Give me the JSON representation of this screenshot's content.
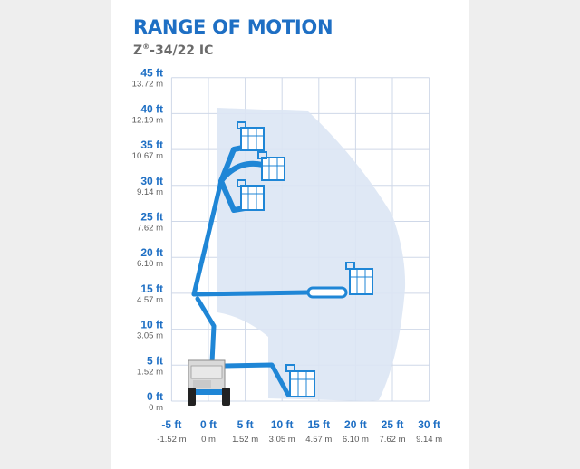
{
  "title": "RANGE OF MOTION",
  "model": {
    "prefix": "Z",
    "mark": "®",
    "rest": "-34/22 IC"
  },
  "y_axis": [
    {
      "ft": "45 ft",
      "m": "13.72 m",
      "v": 45
    },
    {
      "ft": "40 ft",
      "m": "12.19 m",
      "v": 40
    },
    {
      "ft": "35 ft",
      "m": "10.67 m",
      "v": 35
    },
    {
      "ft": "30 ft",
      "m": "9.14 m",
      "v": 30
    },
    {
      "ft": "25 ft",
      "m": "7.62 m",
      "v": 25
    },
    {
      "ft": "20 ft",
      "m": "6.10 m",
      "v": 20
    },
    {
      "ft": "15 ft",
      "m": "4.57 m",
      "v": 15
    },
    {
      "ft": "10 ft",
      "m": "3.05 m",
      "v": 10
    },
    {
      "ft": "5 ft",
      "m": "1.52 m",
      "v": 5
    },
    {
      "ft": "0 ft",
      "m": "0 m",
      "v": 0
    }
  ],
  "x_axis": [
    {
      "ft": "-5 ft",
      "m": "-1.52 m",
      "v": -5
    },
    {
      "ft": "0 ft",
      "m": "0 m",
      "v": 0
    },
    {
      "ft": "5 ft",
      "m": "1.52 m",
      "v": 5
    },
    {
      "ft": "10 ft",
      "m": "3.05 m",
      "v": 10
    },
    {
      "ft": "15 ft",
      "m": "4.57 m",
      "v": 15
    },
    {
      "ft": "20 ft",
      "m": "6.10 m",
      "v": 20
    },
    {
      "ft": "25 ft",
      "m": "7.62 m",
      "v": 25
    },
    {
      "ft": "30 ft",
      "m": "9.14 m",
      "v": 30
    }
  ],
  "colors": {
    "accent": "#1e6fc4",
    "boom": "#1f86d6",
    "grid": "#cfd8e8",
    "envelope": "#dce6f4",
    "machine": "#d9d9d9",
    "label_gray": "#5a5a5a"
  }
}
